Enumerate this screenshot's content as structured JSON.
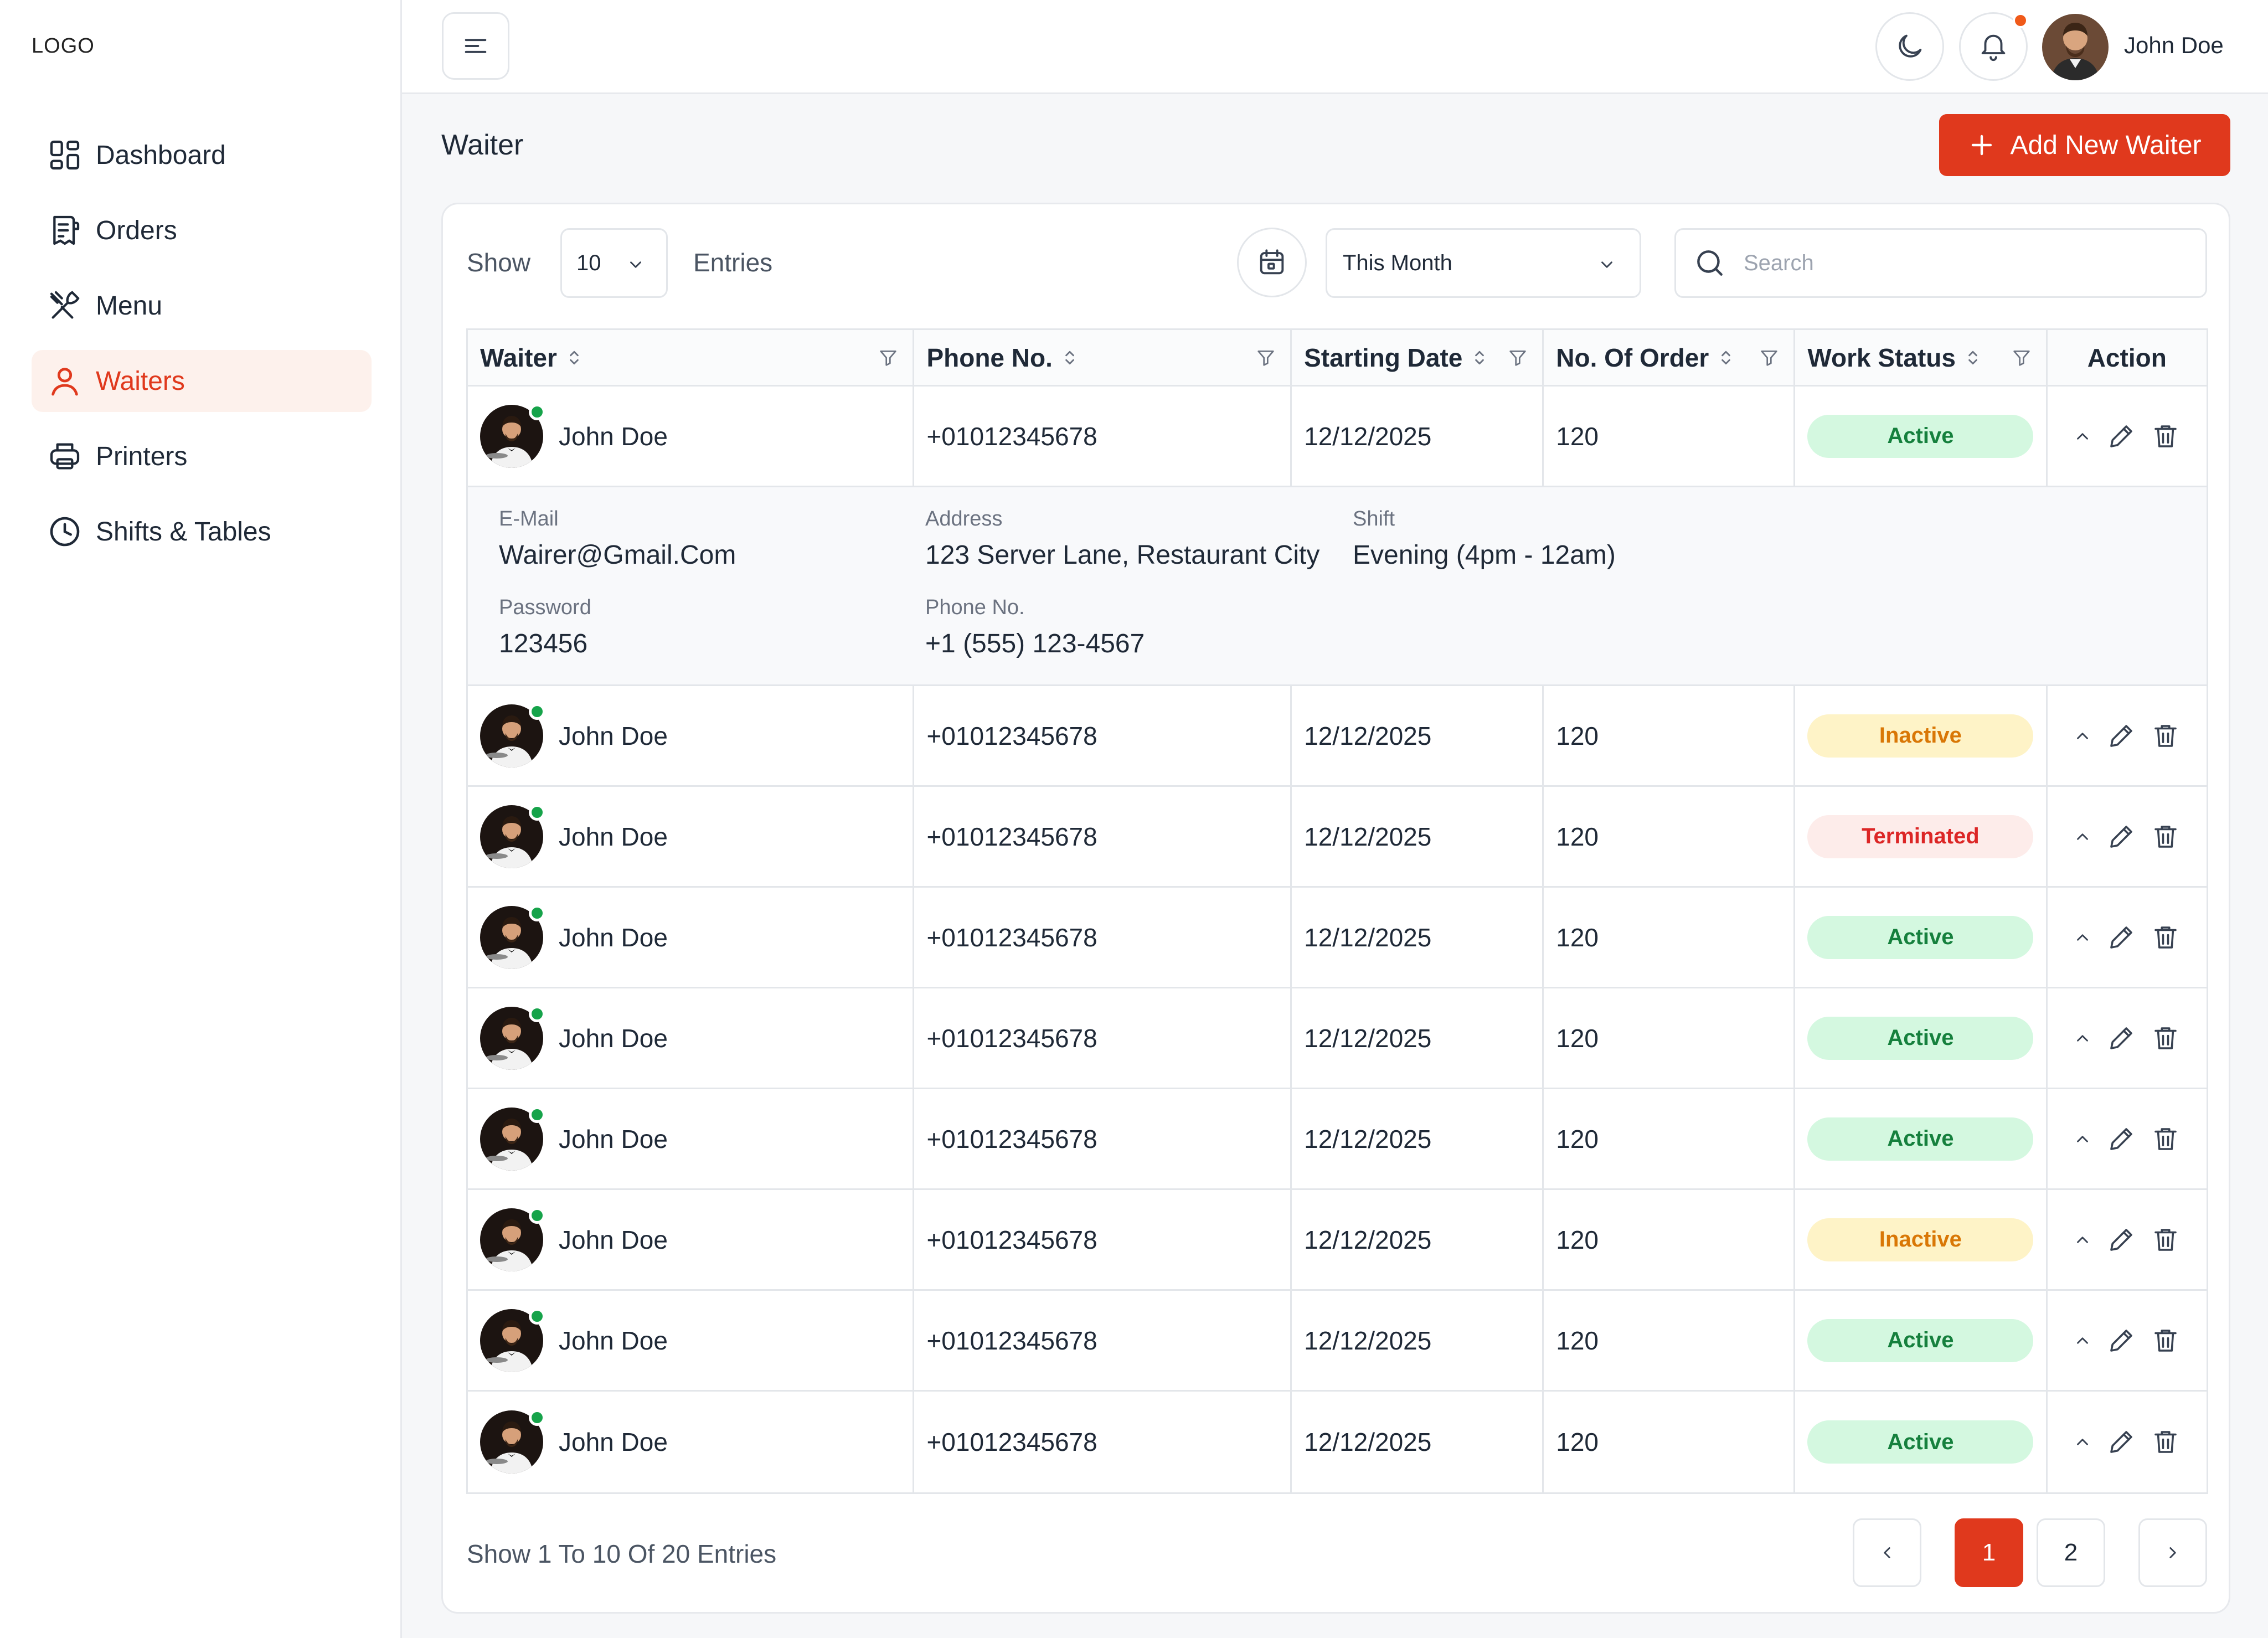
{
  "brand": {
    "logo": "LOGO"
  },
  "sidebar": {
    "items": [
      {
        "label": "Dashboard",
        "icon": "dashboard-icon"
      },
      {
        "label": "Orders",
        "icon": "orders-icon"
      },
      {
        "label": "Menu",
        "icon": "menu-utensils-icon"
      },
      {
        "label": "Waiters",
        "icon": "user-icon",
        "active": true
      },
      {
        "label": "Printers",
        "icon": "printer-icon"
      },
      {
        "label": "Shifts & Tables",
        "icon": "clock-icon"
      }
    ]
  },
  "topbar": {
    "user_name": "John Doe"
  },
  "page": {
    "title": "Waiter",
    "add_button": "Add New Waiter"
  },
  "filters": {
    "show_label": "Show",
    "entries_value": "10",
    "entries_label": "Entries",
    "period_value": "This Month",
    "search_placeholder": "Search"
  },
  "table": {
    "columns": [
      "Waiter",
      "Phone No.",
      "Starting Date",
      "No. Of Order",
      "Work Status",
      "Action"
    ],
    "rows": [
      {
        "name": "John Doe",
        "phone": "+01012345678",
        "date": "12/12/2025",
        "orders": "120",
        "status": "Active"
      },
      {
        "name": "John Doe",
        "phone": "+01012345678",
        "date": "12/12/2025",
        "orders": "120",
        "status": "Inactive"
      },
      {
        "name": "John Doe",
        "phone": "+01012345678",
        "date": "12/12/2025",
        "orders": "120",
        "status": "Terminated"
      },
      {
        "name": "John Doe",
        "phone": "+01012345678",
        "date": "12/12/2025",
        "orders": "120",
        "status": "Active"
      },
      {
        "name": "John Doe",
        "phone": "+01012345678",
        "date": "12/12/2025",
        "orders": "120",
        "status": "Active"
      },
      {
        "name": "John Doe",
        "phone": "+01012345678",
        "date": "12/12/2025",
        "orders": "120",
        "status": "Active"
      },
      {
        "name": "John Doe",
        "phone": "+01012345678",
        "date": "12/12/2025",
        "orders": "120",
        "status": "Inactive"
      },
      {
        "name": "John Doe",
        "phone": "+01012345678",
        "date": "12/12/2025",
        "orders": "120",
        "status": "Active"
      },
      {
        "name": "John Doe",
        "phone": "+01012345678",
        "date": "12/12/2025",
        "orders": "120",
        "status": "Active"
      }
    ],
    "details": {
      "email_label": "E-Mail",
      "email": "Wairer@Gmail.Com",
      "address_label": "Address",
      "address": "123 Server Lane, Restaurant City",
      "shift_label": "Shift",
      "shift": "Evening (4pm - 12am)",
      "password_label": "Password",
      "password": "123456",
      "phone_label": "Phone No.",
      "phone": "+1 (555) 123-4567"
    }
  },
  "pagination": {
    "summary": "Show 1 To 10 Of 20 Entries",
    "pages": [
      "1",
      "2"
    ],
    "current": "1"
  },
  "colors": {
    "accent": "#e0391d",
    "active": "#15803d",
    "inactive": "#d97706",
    "terminated": "#dc2626"
  }
}
